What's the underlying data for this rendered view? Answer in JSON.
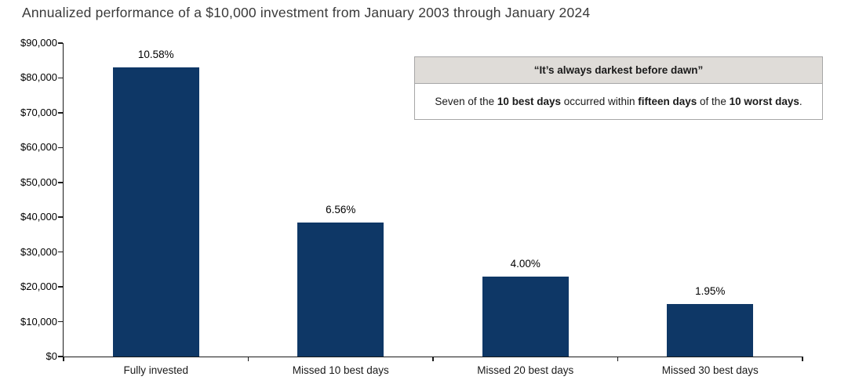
{
  "page": {
    "background": "#ffffff"
  },
  "chart_data": {
    "type": "bar",
    "title": "Annualized performance of a $10,000 investment from January 2003 through January 2024",
    "categories": [
      "Fully invested",
      "Missed 10 best days",
      "Missed 20 best days",
      "Missed 30 best days"
    ],
    "values": [
      83000,
      38500,
      23000,
      15000
    ],
    "bar_labels": [
      "10.58%",
      "6.56%",
      "4.00%",
      "1.95%"
    ],
    "annualized_returns_pct": [
      10.58,
      6.56,
      4.0,
      1.95
    ],
    "xlabel": "",
    "ylabel": "",
    "ylim": [
      0,
      90000
    ],
    "y_ticks": [
      {
        "value": 0,
        "label": "$0"
      },
      {
        "value": 10000,
        "label": "$10,000"
      },
      {
        "value": 20000,
        "label": "$20,000"
      },
      {
        "value": 30000,
        "label": "$30,000"
      },
      {
        "value": 40000,
        "label": "$40,000"
      },
      {
        "value": 50000,
        "label": "$50,000"
      },
      {
        "value": 60000,
        "label": "$60,000"
      },
      {
        "value": 70000,
        "label": "$70,000"
      },
      {
        "value": 80000,
        "label": "$80,000"
      },
      {
        "value": 90000,
        "label": "$90,000"
      }
    ],
    "bar_color": "#0e3766",
    "grid": false,
    "legend": false
  },
  "callout": {
    "header": "“It’s always darkest before dawn”",
    "body_segments": [
      {
        "text": "Seven of the ",
        "bold": false
      },
      {
        "text": "10 best days",
        "bold": true
      },
      {
        "text": " occurred within ",
        "bold": false
      },
      {
        "text": "fifteen days",
        "bold": true
      },
      {
        "text": " of the ",
        "bold": false
      },
      {
        "text": "10 worst days",
        "bold": true
      },
      {
        "text": ".",
        "bold": false
      }
    ],
    "header_bg": "#dfdcd8",
    "border_color": "#a6a6a6"
  }
}
